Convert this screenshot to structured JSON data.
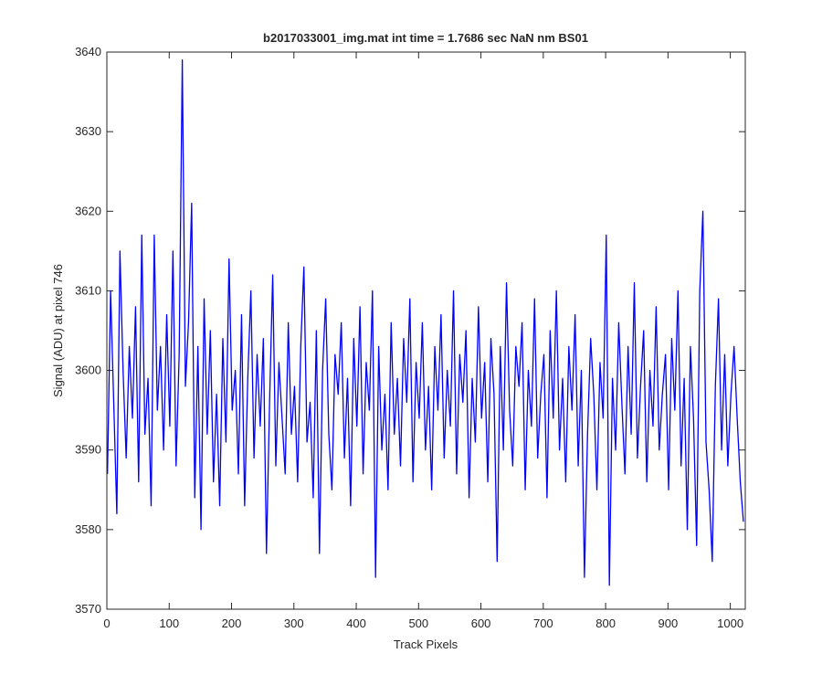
{
  "chart_data": {
    "type": "line",
    "title": "b2017033001_img.mat int time = 1.7686 sec  NaN nm BS01",
    "x_label": "Track Pixels",
    "y_label": "Signal (ADU) at pixel 746",
    "xlim": [
      0,
      1024
    ],
    "ylim": [
      3570,
      3640
    ],
    "xticks": [
      0,
      100,
      200,
      300,
      400,
      500,
      600,
      700,
      800,
      900,
      1000
    ],
    "yticks": [
      3570,
      3580,
      3590,
      3600,
      3610,
      3620,
      3630,
      3640
    ],
    "grid": false,
    "x": [
      1,
      6,
      11,
      16,
      21,
      26,
      31,
      36,
      41,
      46,
      51,
      56,
      61,
      66,
      71,
      76,
      81,
      86,
      91,
      96,
      101,
      106,
      111,
      116,
      121,
      126,
      131,
      136,
      141,
      146,
      151,
      156,
      161,
      166,
      171,
      176,
      181,
      186,
      191,
      196,
      201,
      206,
      211,
      216,
      221,
      226,
      231,
      236,
      241,
      246,
      251,
      256,
      261,
      266,
      271,
      276,
      281,
      286,
      291,
      296,
      301,
      306,
      311,
      316,
      321,
      326,
      331,
      336,
      341,
      346,
      351,
      356,
      361,
      366,
      371,
      376,
      381,
      386,
      391,
      396,
      401,
      406,
      411,
      416,
      421,
      426,
      431,
      436,
      441,
      446,
      451,
      456,
      461,
      466,
      471,
      476,
      481,
      486,
      491,
      496,
      501,
      506,
      511,
      516,
      521,
      526,
      531,
      536,
      541,
      546,
      551,
      556,
      561,
      566,
      571,
      576,
      581,
      586,
      591,
      596,
      601,
      606,
      611,
      616,
      621,
      626,
      631,
      636,
      641,
      646,
      651,
      656,
      661,
      666,
      671,
      676,
      681,
      686,
      691,
      696,
      701,
      706,
      711,
      716,
      721,
      726,
      731,
      736,
      741,
      746,
      751,
      756,
      761,
      766,
      771,
      776,
      781,
      786,
      791,
      796,
      801,
      806,
      811,
      816,
      821,
      826,
      831,
      836,
      841,
      846,
      851,
      856,
      861,
      866,
      871,
      876,
      881,
      886,
      891,
      896,
      901,
      906,
      911,
      916,
      921,
      926,
      931,
      936,
      941,
      946,
      951,
      956,
      961,
      966,
      971,
      976,
      981,
      986,
      991,
      996,
      1001,
      1006,
      1011,
      1016,
      1021
    ],
    "series": [
      {
        "color": "#0000ff",
        "values": [
          3587,
          3610,
          3596,
          3582,
          3615,
          3600,
          3589,
          3603,
          3594,
          3608,
          3586,
          3617,
          3592,
          3599,
          3583,
          3617,
          3595,
          3603,
          3590,
          3607,
          3593,
          3615,
          3588,
          3602,
          3639,
          3598,
          3606,
          3621,
          3584,
          3603,
          3580,
          3609,
          3592,
          3605,
          3586,
          3597,
          3583,
          3604,
          3591,
          3614,
          3595,
          3600,
          3587,
          3607,
          3583,
          3599,
          3610,
          3589,
          3602,
          3593,
          3604,
          3577,
          3596,
          3612,
          3588,
          3601,
          3594,
          3587,
          3606,
          3592,
          3598,
          3586,
          3603,
          3613,
          3591,
          3596,
          3584,
          3605,
          3577,
          3600,
          3609,
          3592,
          3585,
          3602,
          3597,
          3606,
          3589,
          3599,
          3583,
          3604,
          3593,
          3608,
          3587,
          3601,
          3595,
          3610,
          3574,
          3603,
          3590,
          3597,
          3585,
          3606,
          3592,
          3599,
          3588,
          3604,
          3596,
          3609,
          3586,
          3601,
          3594,
          3606,
          3590,
          3598,
          3585,
          3603,
          3595,
          3607,
          3589,
          3600,
          3593,
          3610,
          3587,
          3602,
          3596,
          3605,
          3584,
          3599,
          3591,
          3608,
          3594,
          3601,
          3586,
          3604,
          3597,
          3576,
          3603,
          3590,
          3611,
          3595,
          3588,
          3603,
          3598,
          3606,
          3585,
          3600,
          3593,
          3609,
          3589,
          3597,
          3602,
          3584,
          3605,
          3594,
          3610,
          3590,
          3599,
          3586,
          3603,
          3595,
          3607,
          3588,
          3600,
          3574,
          3592,
          3604,
          3597,
          3585,
          3601,
          3594,
          3617,
          3573,
          3599,
          3590,
          3606,
          3596,
          3587,
          3603,
          3592,
          3611,
          3589,
          3598,
          3605,
          3586,
          3600,
          3593,
          3608,
          3590,
          3597,
          3602,
          3585,
          3604,
          3595,
          3610,
          3588,
          3599,
          3580,
          3603,
          3594,
          3578,
          3610,
          3620,
          3591,
          3585,
          3576,
          3598,
          3609,
          3590,
          3602,
          3588,
          3597,
          3603,
          3594,
          3586,
          3581
        ]
      }
    ]
  }
}
